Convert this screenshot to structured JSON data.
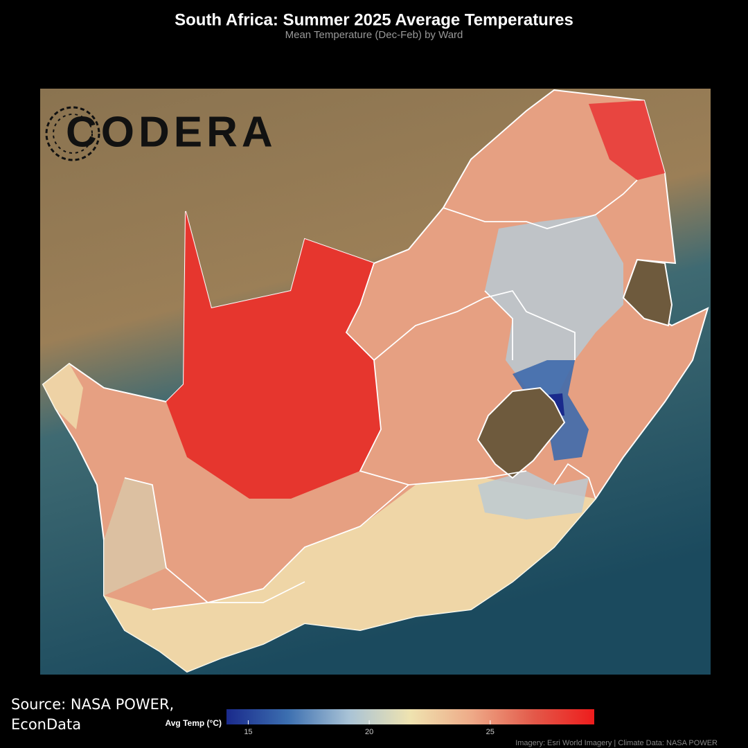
{
  "chart_data": {
    "type": "choropleth",
    "title": "South Africa: Summer 2025 Average Temperatures",
    "subtitle": "Mean Temperature (Dec-Feb) by Ward",
    "logo": "CODERA",
    "source": "Source: NASA POWER, EconData",
    "attribution": "Imagery: Esri World Imagery | Climate Data: NASA POWER",
    "legend": {
      "title": "Avg Temp (°C)",
      "range": [
        14.1,
        29.3
      ],
      "ticks": [
        15,
        20,
        25
      ],
      "colors": [
        "#1a2a8c",
        "#3c6fb0",
        "#a9c3d6",
        "#efe3b0",
        "#eeaa88",
        "#e35a4a",
        "#ee1c1c"
      ]
    }
  }
}
